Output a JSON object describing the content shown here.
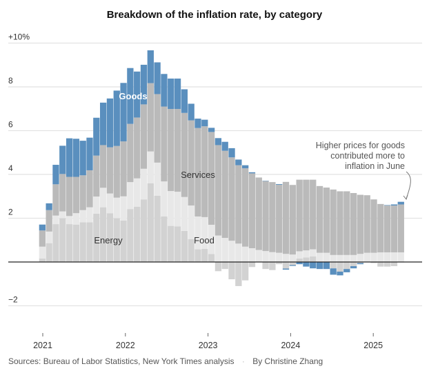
{
  "chart_data": {
    "type": "bar",
    "stacked": true,
    "title": "Breakdown of the inflation rate, by category",
    "xlabel": "",
    "ylabel": "",
    "ylim": [
      -3,
      10
    ],
    "yticks": [
      {
        "value": 10,
        "label": "+10%"
      },
      {
        "value": 8,
        "label": "8"
      },
      {
        "value": 6,
        "label": "6"
      },
      {
        "value": 4,
        "label": "4"
      },
      {
        "value": 2,
        "label": "2"
      },
      {
        "value": -2,
        "label": "−2"
      }
    ],
    "xticks": [
      "2021",
      "2022",
      "2023",
      "2024",
      "2025"
    ],
    "period": "monthly, Jan 2021 – Jun 2025",
    "series": [
      {
        "name": "Energy",
        "color": "#d2d2d2",
        "values": [
          0.16,
          0.86,
          1.73,
          2.0,
          1.73,
          1.71,
          1.81,
          1.81,
          2.21,
          2.5,
          2.23,
          2.0,
          1.89,
          2.42,
          2.52,
          2.86,
          3.6,
          3.03,
          2.08,
          1.65,
          1.63,
          1.42,
          1.05,
          0.58,
          0.6,
          0.37,
          -0.42,
          -0.32,
          -0.79,
          -1.1,
          -0.84,
          -0.23,
          0,
          -0.32,
          -0.37,
          -0.1,
          -0.3,
          -0.14,
          0.16,
          0.21,
          0.26,
          0,
          0,
          -0.29,
          -0.44,
          -0.32,
          -0.19,
          -0.05,
          0,
          -0.05,
          -0.21,
          -0.21,
          -0.19,
          -0.02
        ]
      },
      {
        "name": "Food",
        "color": "#e8e8e8",
        "values": [
          0.54,
          0.53,
          0.39,
          0.31,
          0.37,
          0.52,
          0.56,
          0.69,
          0.78,
          0.89,
          0.9,
          0.94,
          1.11,
          1.23,
          1.3,
          1.4,
          1.45,
          1.51,
          1.6,
          1.59,
          1.58,
          1.55,
          1.53,
          1.5,
          1.45,
          1.33,
          1.21,
          1.1,
          0.97,
          0.84,
          0.7,
          0.63,
          0.55,
          0.5,
          0.45,
          0.42,
          0.37,
          0.34,
          0.33,
          0.32,
          0.32,
          0.42,
          0.42,
          0.32,
          0.32,
          0.32,
          0.32,
          0.37,
          0.42,
          0.42,
          0.44,
          0.44,
          0.44,
          0.44
        ]
      },
      {
        "name": "Services",
        "color": "#bababa",
        "values": [
          0.74,
          0.98,
          1.43,
          1.71,
          1.79,
          1.66,
          1.59,
          1.69,
          1.87,
          1.95,
          2.11,
          2.36,
          2.51,
          2.66,
          2.78,
          2.94,
          3.12,
          3.13,
          3.42,
          3.75,
          3.78,
          3.84,
          3.89,
          4.04,
          4.15,
          4.24,
          4.13,
          3.98,
          3.81,
          3.58,
          3.58,
          3.42,
          3.31,
          3.2,
          3.2,
          3.11,
          3.29,
          3.18,
          3.27,
          3.23,
          3.18,
          3.05,
          2.98,
          2.99,
          2.91,
          2.91,
          2.83,
          2.7,
          2.63,
          2.44,
          2.21,
          2.14,
          2.14,
          2.19
        ]
      },
      {
        "name": "Goods",
        "color": "#5a8fbe",
        "values": [
          0.27,
          0.31,
          0.89,
          1.29,
          1.76,
          1.74,
          1.58,
          1.49,
          1.73,
          1.94,
          2.23,
          2.53,
          2.67,
          2.55,
          2.1,
          1.81,
          1.5,
          1.45,
          1.49,
          1.39,
          1.39,
          1.08,
          0.76,
          0.43,
          0.3,
          0.19,
          0.32,
          0.41,
          0.42,
          0.26,
          0.14,
          0.05,
          0,
          0.01,
          0,
          0.03,
          -0.05,
          -0.04,
          -0.1,
          -0.21,
          -0.29,
          -0.32,
          -0.32,
          -0.29,
          -0.17,
          -0.15,
          -0.1,
          -0.05,
          0,
          0,
          0,
          0.02,
          0.05,
          0.12
        ]
      }
    ],
    "series_labels": {
      "goods": "Goods",
      "services": "Services",
      "energy": "Energy",
      "food": "Food"
    },
    "annotation": [
      "Higher prices for goods",
      "contributed more to",
      "inflation in June"
    ],
    "grid": true,
    "legend": "inline labels"
  },
  "footer": {
    "sources": "Sources: Bureau of Labor Statistics, New York Times analysis",
    "separator": "·",
    "byline": "By Christine Zhang"
  }
}
